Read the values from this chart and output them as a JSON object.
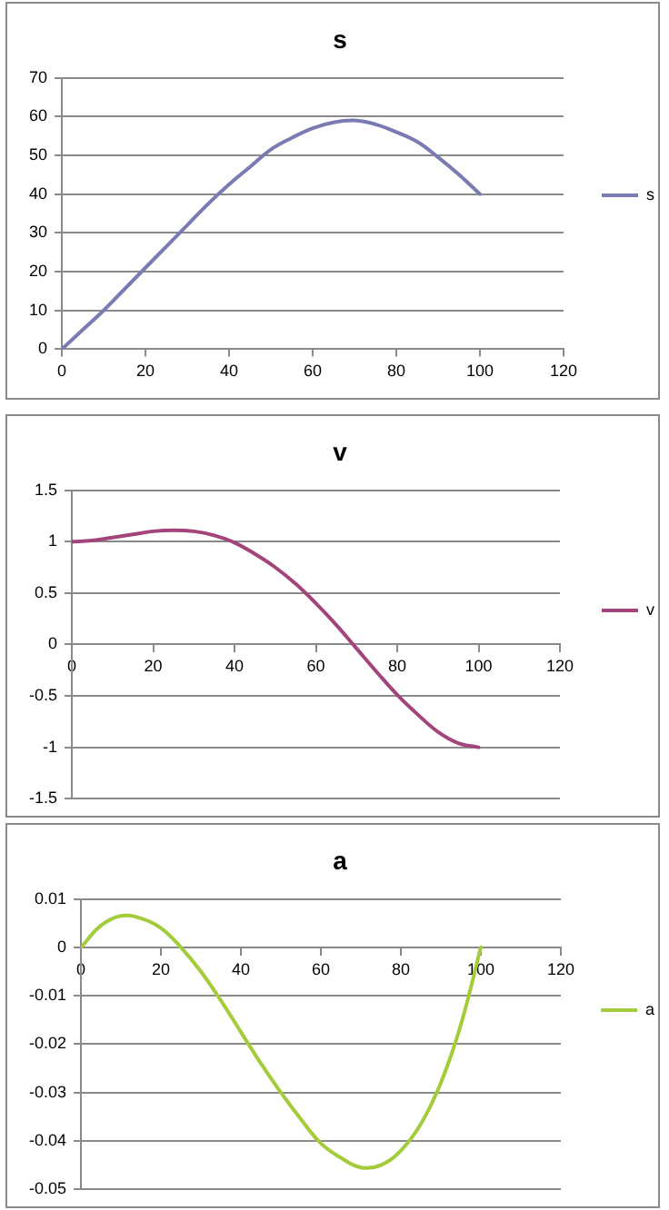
{
  "chart_data": [
    {
      "type": "line",
      "title": "s",
      "x": [
        0,
        5,
        10,
        15,
        20,
        25,
        30,
        35,
        40,
        45,
        50,
        55,
        60,
        65,
        70,
        75,
        80,
        85,
        90,
        95,
        100
      ],
      "series": [
        {
          "name": "s",
          "color": "#7b7bb3",
          "values": [
            0,
            5,
            10,
            15.5,
            21,
            26.5,
            32,
            37.5,
            42.5,
            47,
            51.5,
            54.5,
            57,
            58.5,
            59,
            58,
            56,
            53.5,
            49.5,
            45,
            40
          ]
        }
      ],
      "xlim": [
        0,
        120
      ],
      "xticks": [
        0,
        20,
        40,
        60,
        80,
        100,
        120
      ],
      "ylim": [
        0,
        70
      ],
      "yticks": [
        0,
        10,
        20,
        30,
        40,
        50,
        60,
        70
      ],
      "grid": "y",
      "legend": "right",
      "marker": "none"
    },
    {
      "type": "line",
      "title": "v",
      "x": [
        0,
        5,
        10,
        15,
        20,
        25,
        30,
        35,
        40,
        45,
        50,
        55,
        60,
        65,
        70,
        75,
        80,
        85,
        90,
        95,
        100
      ],
      "series": [
        {
          "name": "v",
          "color": "#a3457a",
          "values": [
            1,
            1.01,
            1.04,
            1.07,
            1.1,
            1.11,
            1.1,
            1.06,
            0.99,
            0.88,
            0.75,
            0.59,
            0.4,
            0.19,
            -0.04,
            -0.27,
            -0.49,
            -0.68,
            -0.85,
            -0.96,
            -1
          ]
        }
      ],
      "xlim": [
        0,
        120
      ],
      "xticks": [
        0,
        20,
        40,
        60,
        80,
        100,
        120
      ],
      "ylim": [
        -1.5,
        1.5
      ],
      "yticks": [
        -1.5,
        -1,
        -0.5,
        0,
        0.5,
        1,
        1.5
      ],
      "grid": "y",
      "legend": "right",
      "marker": "none"
    },
    {
      "type": "line",
      "title": "a",
      "x": [
        0,
        5,
        10,
        15,
        20,
        25,
        30,
        35,
        40,
        45,
        50,
        55,
        60,
        65,
        70,
        75,
        80,
        85,
        90,
        95,
        100
      ],
      "series": [
        {
          "name": "a",
          "color": "#a2cc3a",
          "values": [
            0,
            0.0045,
            0.0065,
            0.006,
            0.004,
            0,
            -0.005,
            -0.011,
            -0.0175,
            -0.024,
            -0.03,
            -0.0355,
            -0.0405,
            -0.0435,
            -0.0455,
            -0.045,
            -0.042,
            -0.0365,
            -0.028,
            -0.016,
            0
          ]
        }
      ],
      "xlim": [
        0,
        120
      ],
      "xticks": [
        0,
        20,
        40,
        60,
        80,
        100,
        120
      ],
      "ylim": [
        -0.05,
        0.01
      ],
      "yticks": [
        -0.05,
        -0.04,
        -0.03,
        -0.02,
        -0.01,
        0,
        0.01
      ],
      "grid": "y",
      "legend": "right",
      "marker": "none"
    }
  ]
}
